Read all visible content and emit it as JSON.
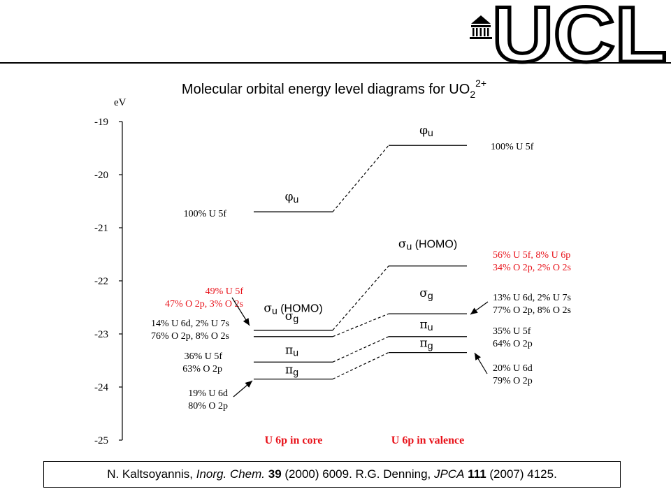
{
  "logo": {
    "text": "UCL",
    "icon": "portico-building-icon"
  },
  "title": {
    "text": "Molecular orbital energy level diagrams for UO",
    "sub": "2",
    "sup": "2+"
  },
  "axis": {
    "unit": "eV",
    "ticks": [
      "-19",
      "-20",
      "-21",
      "-22",
      "-23",
      "-24",
      "-25"
    ],
    "range": [
      -25,
      -19
    ]
  },
  "columns": {
    "core": "U 6p in core",
    "valence": "U 6p in valence"
  },
  "core_levels": [
    {
      "label": "φ",
      "sub": "u",
      "energy": -20.7,
      "comp": [
        "100% U 5f"
      ],
      "color": "#000000"
    },
    {
      "label": "σ",
      "sub": "u",
      "suffix": " (HOMO)",
      "energy": -22.93,
      "comp": [
        "49% U 5f",
        "47% O 2p, 3% O 2s"
      ],
      "color": "#e8121a"
    },
    {
      "label": "σ",
      "sub": "g",
      "energy": -23.05,
      "comp": [
        "14% U 6d, 2% U 7s",
        "76% O 2p, 8% O 2s"
      ],
      "color": "#000000"
    },
    {
      "label": "π",
      "sub": "u",
      "energy": -23.53,
      "comp": [
        "36% U 5f",
        "63% O 2p"
      ],
      "color": "#000000"
    },
    {
      "label": "π",
      "sub": "g",
      "energy": -23.85,
      "comp": [
        "19% U 6d",
        "80% O 2p"
      ],
      "color": "#000000"
    }
  ],
  "valence_levels": [
    {
      "label": "φ",
      "sub": "u",
      "energy": -19.45,
      "comp": [
        "100% U 5f"
      ],
      "color": "#000000"
    },
    {
      "label": "σ",
      "sub": "u",
      "suffix": " (HOMO)",
      "energy": -21.72,
      "comp": [
        "56% U 5f, 8% U 6p",
        "34% O 2p, 2% O 2s"
      ],
      "color": "#e8121a"
    },
    {
      "label": "σ",
      "sub": "g",
      "energy": -22.62,
      "comp": [
        "13% U 6d, 2% U 7s",
        "77% O 2p, 8% O 2s"
      ],
      "color": "#000000"
    },
    {
      "label": "π",
      "sub": "u",
      "energy": -23.05,
      "comp": [
        "35% U 5f",
        "64% O 2p"
      ],
      "color": "#000000"
    },
    {
      "label": "π",
      "sub": "g",
      "energy": -23.35,
      "comp": [
        "20% U 6d",
        "79% O 2p"
      ],
      "color": "#000000"
    }
  ],
  "citation": {
    "parts": [
      {
        "text": "N. Kaltsoyannis, ",
        "style": "normal"
      },
      {
        "text": "Inorg. Chem.",
        "style": "italic"
      },
      {
        "text": " ",
        "style": "normal"
      },
      {
        "text": "39",
        "style": "bold"
      },
      {
        "text": " (2000) 6009. R.G. Denning, ",
        "style": "normal"
      },
      {
        "text": "JPCA",
        "style": "italic"
      },
      {
        "text": " ",
        "style": "normal"
      },
      {
        "text": "111",
        "style": "bold"
      },
      {
        "text": " (2007) 4125.",
        "style": "normal"
      }
    ]
  },
  "colors": {
    "red": "#e8121a",
    "black": "#000000"
  }
}
